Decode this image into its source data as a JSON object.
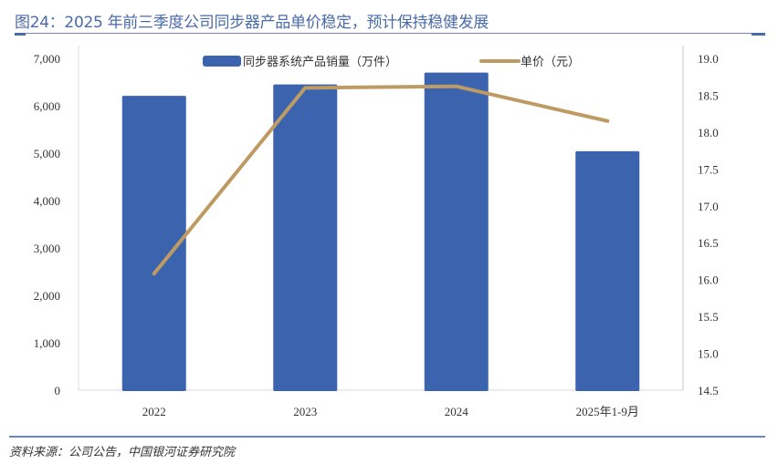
{
  "title": "图24：2025 年前三季度公司同步器产品单价稳定，预计保持稳健发展",
  "source": "资料来源：公司公告，中国银河证券研究院",
  "chart_data": {
    "type": "bar",
    "title": "图24：2025 年前三季度公司同步器产品单价稳定，预计保持稳健发展",
    "categories": [
      "2022",
      "2023",
      "2024",
      "2025年1-9月"
    ],
    "series": [
      {
        "name": "同步器系统产品销量（万件）",
        "type": "bar",
        "axis": "left",
        "color": "#3c64ae",
        "values": [
          6210,
          6450,
          6700,
          5040
        ]
      },
      {
        "name": "单价（元）",
        "type": "line",
        "axis": "right",
        "color": "#bf9b64",
        "values": [
          16.08,
          18.6,
          18.62,
          18.15
        ]
      }
    ],
    "left_axis": {
      "ylim": [
        0,
        7000
      ],
      "ticks": [
        "0",
        "1,000",
        "2,000",
        "3,000",
        "4,000",
        "5,000",
        "6,000",
        "7,000"
      ],
      "tick_values": [
        0,
        1000,
        2000,
        3000,
        4000,
        5000,
        6000,
        7000
      ]
    },
    "right_axis": {
      "ylim": [
        14.5,
        19.0
      ],
      "ticks": [
        "14.5",
        "15.0",
        "15.5",
        "16.0",
        "16.5",
        "17.0",
        "17.5",
        "18.0",
        "18.5",
        "19.0"
      ],
      "tick_values": [
        14.5,
        15.0,
        15.5,
        16.0,
        16.5,
        17.0,
        17.5,
        18.0,
        18.5,
        19.0
      ]
    },
    "legend_position": "top",
    "grid": false
  }
}
